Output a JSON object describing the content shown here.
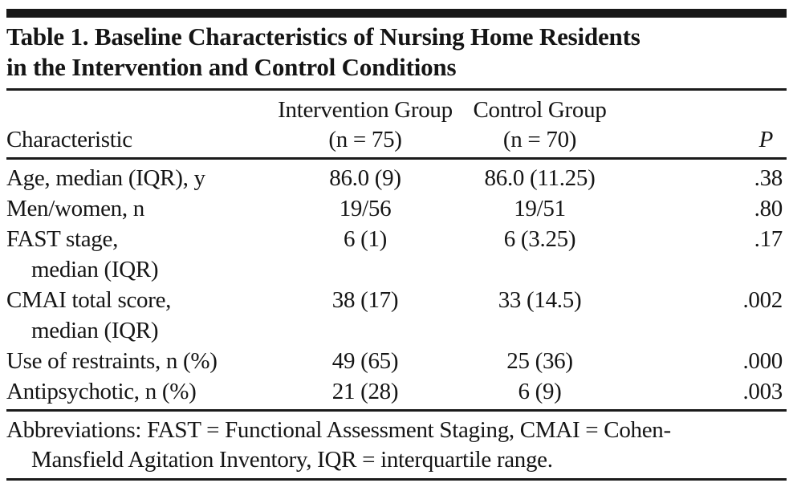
{
  "title": {
    "line1": "Table 1. Baseline Characteristics of Nursing Home Residents",
    "line2": "in the Intervention and Control Conditions"
  },
  "header": {
    "characteristic": "Characteristic",
    "intervention_line1": "Intervention Group",
    "intervention_line2": "(n = 75)",
    "control_line1": "Control Group",
    "control_line2": "(n = 70)",
    "p": "P"
  },
  "rows": [
    {
      "characteristic": "Age, median (IQR), y",
      "characteristic_line2": "",
      "intervention": "86.0 (9)",
      "control": "86.0 (11.25)",
      "p": ".38"
    },
    {
      "characteristic": "Men/women, n",
      "characteristic_line2": "",
      "intervention": "19/56",
      "control": "19/51",
      "p": ".80"
    },
    {
      "characteristic": "FAST stage,",
      "characteristic_line2": "median (IQR)",
      "intervention": "6 (1)",
      "control": "6 (3.25)",
      "p": ".17"
    },
    {
      "characteristic": "CMAI total score,",
      "characteristic_line2": "median (IQR)",
      "intervention": "38 (17)",
      "control": "33 (14.5)",
      "p": ".002"
    },
    {
      "characteristic": "Use of restraints, n (%)",
      "characteristic_line2": "",
      "intervention": "49 (65)",
      "control": "25 (36)",
      "p": ".000"
    },
    {
      "characteristic": "Antipsychotic, n (%)",
      "characteristic_line2": "",
      "intervention": "21 (28)",
      "control": "6 (9)",
      "p": ".003"
    }
  ],
  "footnote": {
    "line1": "Abbreviations: FAST = Functional Assessment Staging, CMAI = Cohen-",
    "line2": "Mansfield Agitation Inventory, IQR = interquartile range."
  },
  "colors": {
    "text": "#151515",
    "rule": "#1b1b1b",
    "background": "#ffffff"
  },
  "chart_data": {
    "type": "table",
    "title": "Table 1. Baseline Characteristics of Nursing Home Residents in the Intervention and Control Conditions",
    "columns": [
      "Characteristic",
      "Intervention Group (n = 75)",
      "Control Group (n = 70)",
      "P"
    ],
    "rows": [
      [
        "Age, median (IQR), y",
        "86.0 (9)",
        "86.0 (11.25)",
        ".38"
      ],
      [
        "Men/women, n",
        "19/56",
        "19/51",
        ".80"
      ],
      [
        "FAST stage, median (IQR)",
        "6 (1)",
        "6 (3.25)",
        ".17"
      ],
      [
        "CMAI total score, median (IQR)",
        "38 (17)",
        "33 (14.5)",
        ".002"
      ],
      [
        "Use of restraints, n (%)",
        "49 (65)",
        "25 (36)",
        ".000"
      ],
      [
        "Antipsychotic, n (%)",
        "21 (28)",
        "6 (9)",
        ".003"
      ]
    ],
    "footnote": "Abbreviations: FAST = Functional Assessment Staging, CMAI = Cohen-Mansfield Agitation Inventory, IQR = interquartile range."
  }
}
